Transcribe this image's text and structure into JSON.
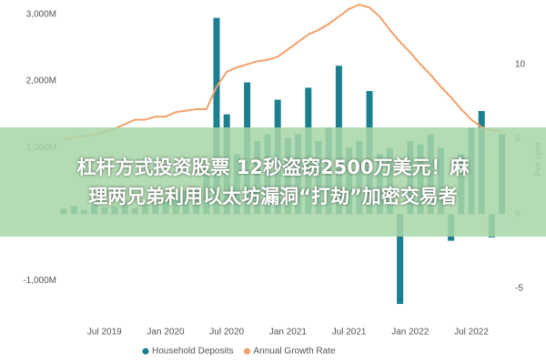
{
  "chart_data": {
    "type": "bar_line",
    "categories": [
      null,
      null,
      null,
      null,
      "Jul 2019",
      null,
      null,
      null,
      null,
      null,
      "Jan 2020",
      null,
      null,
      null,
      null,
      null,
      "Jul 2020",
      null,
      null,
      null,
      null,
      null,
      "Jan 2021",
      null,
      null,
      null,
      null,
      null,
      "Jul 2021",
      null,
      null,
      null,
      null,
      null,
      "Jan 2022",
      null,
      null,
      null,
      null,
      null,
      "Jul 2022",
      null,
      null,
      null
    ],
    "series": [
      {
        "name": "Household Deposits",
        "color": "#1b7f8f",
        "type": "bar",
        "values": [
          80,
          120,
          60,
          150,
          100,
          120,
          180,
          90,
          150,
          200,
          250,
          300,
          350,
          400,
          700,
          2950,
          1500,
          900,
          1980,
          1100,
          1200,
          1720,
          1150,
          1200,
          1900,
          1100,
          1300,
          2230,
          1000,
          1100,
          1850,
          900,
          1000,
          -1350,
          1100,
          1050,
          1200,
          1000,
          -400,
          900,
          1300,
          1550,
          -350,
          1200
        ]
      },
      {
        "name": "Annual Growth Rate",
        "color": "#f3a16a",
        "type": "line",
        "axis": "y2",
        "values": [
          5.0,
          5.1,
          5.2,
          5.3,
          5.5,
          5.7,
          6.0,
          6.3,
          6.3,
          6.5,
          6.5,
          6.8,
          6.9,
          7.0,
          7.0,
          8.5,
          9.5,
          9.8,
          10.0,
          10.2,
          10.3,
          10.5,
          11.0,
          11.5,
          12.0,
          12.3,
          12.7,
          13.2,
          13.7,
          14.0,
          13.8,
          13.2,
          12.3,
          11.5,
          10.8,
          10.0,
          9.3,
          8.5,
          7.8,
          7.0,
          6.3,
          5.8,
          5.6,
          5.5
        ]
      }
    ],
    "ylim": [
      -1500,
      3150
    ],
    "yticks": [
      {
        "value": 3000,
        "label": "3,000M"
      },
      {
        "value": 2000,
        "label": "2,000M"
      },
      {
        "value": 1000,
        "label": "1,000M"
      },
      {
        "value": -1000,
        "label": "-1,000M"
      }
    ],
    "y2lim": [
      -6.7,
      14
    ],
    "y2ticks": [
      10,
      5,
      0,
      -5
    ],
    "y2_label": "Per cent",
    "legend": "bottom"
  },
  "overlay": {
    "lines": [
      "杠杆方式投资股票 12秒盗窃2500万美元！麻",
      "理两兄弟利用以太坊漏洞“打劫”加密交易者"
    ]
  }
}
